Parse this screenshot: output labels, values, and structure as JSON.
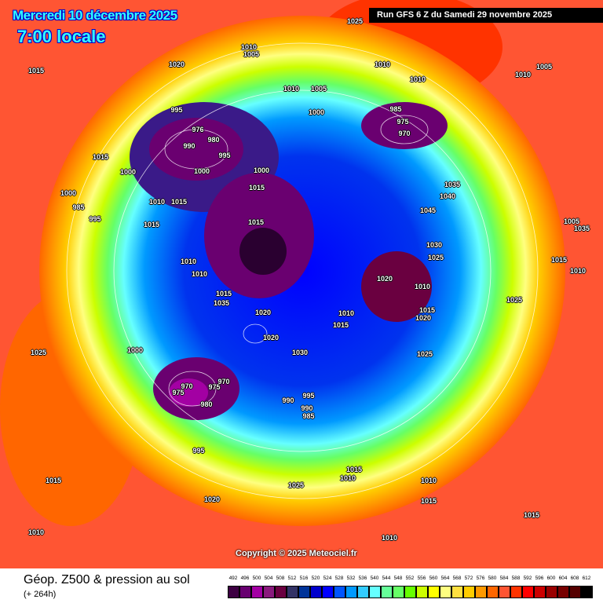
{
  "header": {
    "valid_date": "Mercredi 10 décembre 2025",
    "valid_time": "7:00 locale",
    "run_info": "Run GFS 6 Z du Samedi 29 novembre 2025"
  },
  "copyright": "Copyright © 2025 Meteociel.fr",
  "footer": {
    "title": "Géop. Z500 & pression au sol",
    "lead_time": "(+ 264h)"
  },
  "legend": {
    "ticks": [
      "492",
      "496",
      "500",
      "504",
      "508",
      "512",
      "516",
      "520",
      "524",
      "528",
      "532",
      "536",
      "540",
      "544",
      "548",
      "552",
      "556",
      "560",
      "564",
      "568",
      "572",
      "576",
      "580",
      "584",
      "588",
      "592",
      "596",
      "600",
      "604",
      "608",
      "612"
    ],
    "colors": [
      "#3d0042",
      "#680070",
      "#a300a3",
      "#8a1a7d",
      "#6a0040",
      "#333366",
      "#003399",
      "#0000cc",
      "#0000ff",
      "#0055ff",
      "#0099ff",
      "#33ccff",
      "#66ffff",
      "#66ff99",
      "#66ff66",
      "#66ff00",
      "#ccff00",
      "#ffff00",
      "#ffff80",
      "#ffe040",
      "#ffcc00",
      "#ff9900",
      "#ff6600",
      "#ff5533",
      "#ff3300",
      "#ff0000",
      "#cc0000",
      "#990000",
      "#770000",
      "#550000",
      "#000000"
    ]
  },
  "pressure_labels": [
    "1025",
    "1010",
    "1005",
    "1020",
    "1010",
    "1015",
    "1010",
    "1005",
    "1010",
    "1010",
    "1005",
    "1000",
    "995",
    "985",
    "975",
    "970",
    "976",
    "980",
    "990",
    "995",
    "1000",
    "1000",
    "1000",
    "1015",
    "1015",
    "1000",
    "985",
    "995",
    "1010",
    "1015",
    "1015",
    "1015",
    "1035",
    "1040",
    "1045",
    "1030",
    "1025",
    "1020",
    "1010",
    "1015",
    "1020",
    "1010",
    "1010",
    "1015",
    "1035",
    "1025",
    "1020",
    "1020",
    "1000",
    "1030",
    "1025",
    "1015",
    "1010",
    "990",
    "995",
    "990",
    "985",
    "970",
    "975",
    "975",
    "970",
    "980",
    "995",
    "1015",
    "1025",
    "1010",
    "1015",
    "1010",
    "1015",
    "1020",
    "1010",
    "1015",
    "1025",
    "1010",
    "1035",
    "1005",
    "1010",
    "1015"
  ]
}
